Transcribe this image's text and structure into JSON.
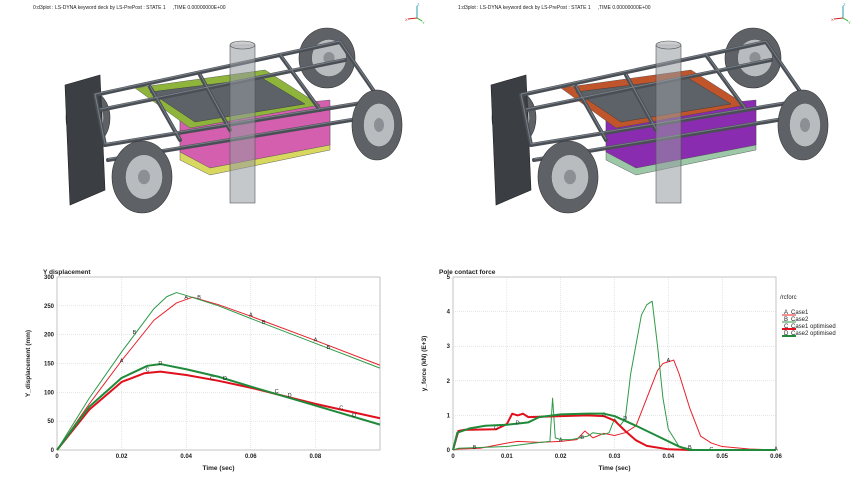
{
  "viewports": [
    {
      "title": "0:d3plot : LS-DYNA keyword deck by LS-PrePost : STATE 1     ,TIME 0.00000000E+00",
      "colors": {
        "top": "#8fb43c",
        "mid": "#d45fae",
        "base": "#d8d860",
        "frame": "#4a4f55"
      }
    },
    {
      "title": "1:d3plot : LS-DYNA keyword deck by LS-PrePost : STATE 1     ,TIME 0.00000000E+00",
      "colors": {
        "top": "#c0552c",
        "mid": "#8a2cb0",
        "base": "#9cc8a8",
        "frame": "#4a4f55"
      }
    }
  ],
  "triad": {
    "x": "X",
    "y": "Y",
    "z": "Z"
  },
  "chart_data": [
    {
      "type": "line",
      "title": "Y displacement",
      "xlabel": "Time (sec)",
      "ylabel": "Y_displacement (mm)",
      "xlim": [
        0,
        0.1
      ],
      "ylim": [
        0,
        300
      ],
      "grid": true,
      "xticks": [
        0,
        0.02,
        0.04,
        0.06,
        0.08
      ],
      "xtick_labels": [
        "0",
        "0.02",
        "0.04",
        "0.06",
        "0.08"
      ],
      "yticks": [
        0,
        50,
        100,
        150,
        200,
        250,
        300
      ],
      "ytick_labels": [
        "0",
        "50",
        "100",
        "150",
        "200",
        "250",
        "300"
      ],
      "series": [
        {
          "name": "Case1",
          "letter": "A",
          "color": "#e8202a",
          "width": 1,
          "points": [
            [
              0,
              0
            ],
            [
              0.01,
              80
            ],
            [
              0.02,
              155
            ],
            [
              0.03,
              225
            ],
            [
              0.037,
              255
            ],
            [
              0.042,
              265
            ],
            [
              0.05,
              252
            ],
            [
              0.06,
              232
            ],
            [
              0.08,
              190
            ],
            [
              0.1,
              147
            ]
          ],
          "markers": [
            [
              0.02,
              155
            ],
            [
              0.04,
              265
            ],
            [
              0.06,
              235
            ],
            [
              0.08,
              192
            ]
          ]
        },
        {
          "name": "Case2",
          "letter": "B",
          "color": "#2f9a48",
          "width": 1,
          "points": [
            [
              0,
              0
            ],
            [
              0.01,
              90
            ],
            [
              0.02,
              170
            ],
            [
              0.03,
              245
            ],
            [
              0.034,
              266
            ],
            [
              0.037,
              273
            ],
            [
              0.04,
              268
            ],
            [
              0.05,
              250
            ],
            [
              0.06,
              228
            ],
            [
              0.08,
              185
            ],
            [
              0.1,
              142
            ]
          ],
          "markers": [
            [
              0.024,
              205
            ],
            [
              0.044,
              265
            ],
            [
              0.064,
              222
            ],
            [
              0.084,
              179
            ]
          ]
        },
        {
          "name": "Case1 optimised",
          "letter": "C",
          "color": "#e0101c",
          "width": 2,
          "points": [
            [
              0,
              0
            ],
            [
              0.01,
              70
            ],
            [
              0.02,
              118
            ],
            [
              0.027,
              133
            ],
            [
              0.032,
              136
            ],
            [
              0.04,
              130
            ],
            [
              0.05,
              120
            ],
            [
              0.06,
              108
            ],
            [
              0.08,
              80
            ],
            [
              0.1,
              55
            ]
          ],
          "markers": [
            [
              0.028,
              140
            ],
            [
              0.048,
              125
            ],
            [
              0.068,
              102
            ],
            [
              0.088,
              74
            ]
          ]
        },
        {
          "name": "Case2 optimised",
          "letter": "D",
          "color": "#1f8a3a",
          "width": 2,
          "points": [
            [
              0,
              0
            ],
            [
              0.01,
              75
            ],
            [
              0.02,
              125
            ],
            [
              0.028,
              146
            ],
            [
              0.032,
              149
            ],
            [
              0.04,
              140
            ],
            [
              0.05,
              127
            ],
            [
              0.06,
              110
            ],
            [
              0.08,
              77
            ],
            [
              0.1,
              44
            ]
          ],
          "markers": [
            [
              0.032,
              151
            ],
            [
              0.052,
              125
            ],
            [
              0.072,
              95
            ],
            [
              0.092,
              61
            ]
          ]
        }
      ]
    },
    {
      "type": "line",
      "title": "Pole contact force",
      "xlabel": "Time (sec)",
      "ylabel": "y_force (kN) (E+3)",
      "xlim": [
        0,
        0.06
      ],
      "ylim": [
        0,
        5
      ],
      "grid": true,
      "xticks": [
        0,
        0.01,
        0.02,
        0.03,
        0.04,
        0.05,
        0.06
      ],
      "xtick_labels": [
        "0",
        "0.01",
        "0.02",
        "0.03",
        "0.04",
        "0.05",
        "0.06"
      ],
      "yticks": [
        0,
        1,
        2,
        3,
        4,
        5
      ],
      "ytick_labels": [
        "0",
        "1",
        "2",
        "3",
        "4",
        "5"
      ],
      "legend_title": "/rcforc",
      "legend_position": "right",
      "series": [
        {
          "name": "Case1",
          "letter": "A",
          "color": "#e8202a",
          "width": 1,
          "points": [
            [
              0,
              0
            ],
            [
              0.001,
              0.03
            ],
            [
              0.005,
              0.05
            ],
            [
              0.01,
              0.2
            ],
            [
              0.012,
              0.25
            ],
            [
              0.016,
              0.22
            ],
            [
              0.02,
              0.25
            ],
            [
              0.023,
              0.3
            ],
            [
              0.0245,
              0.55
            ],
            [
              0.026,
              0.35
            ],
            [
              0.028,
              0.48
            ],
            [
              0.03,
              0.42
            ],
            [
              0.032,
              0.5
            ],
            [
              0.034,
              0.7
            ],
            [
              0.036,
              1.5
            ],
            [
              0.038,
              2.3
            ],
            [
              0.039,
              2.5
            ],
            [
              0.041,
              2.6
            ],
            [
              0.042,
              2.2
            ],
            [
              0.044,
              1.2
            ],
            [
              0.045,
              0.8
            ],
            [
              0.046,
              0.4
            ],
            [
              0.048,
              0.2
            ],
            [
              0.05,
              0.1
            ],
            [
              0.055,
              0.03
            ],
            [
              0.06,
              0
            ]
          ],
          "markers": [
            [
              0.02,
              0.3
            ],
            [
              0.04,
              2.6
            ],
            [
              0.06,
              0.05
            ]
          ]
        },
        {
          "name": "Case2",
          "letter": "B",
          "color": "#2f9a48",
          "width": 1,
          "points": [
            [
              0,
              0
            ],
            [
              0.001,
              0.05
            ],
            [
              0.01,
              0.1
            ],
            [
              0.015,
              0.2
            ],
            [
              0.018,
              0.25
            ],
            [
              0.0185,
              1.5
            ],
            [
              0.019,
              0.35
            ],
            [
              0.02,
              0.3
            ],
            [
              0.022,
              0.3
            ],
            [
              0.025,
              0.4
            ],
            [
              0.026,
              0.5
            ],
            [
              0.028,
              0.45
            ],
            [
              0.029,
              0.5
            ],
            [
              0.03,
              0.9
            ],
            [
              0.031,
              0.7
            ],
            [
              0.032,
              0.9
            ],
            [
              0.033,
              2.2
            ],
            [
              0.035,
              3.9
            ],
            [
              0.036,
              4.2
            ],
            [
              0.037,
              4.3
            ],
            [
              0.038,
              3.0
            ],
            [
              0.039,
              1.5
            ],
            [
              0.04,
              0.6
            ],
            [
              0.042,
              0.1
            ],
            [
              0.045,
              0
            ],
            [
              0.06,
              0
            ]
          ],
          "markers": [
            [
              0.004,
              0.08
            ],
            [
              0.024,
              0.38
            ],
            [
              0.044,
              0.08
            ]
          ]
        },
        {
          "name": "Case1 optimised",
          "letter": "C",
          "color": "#e0101c",
          "width": 2,
          "points": [
            [
              0,
              0
            ],
            [
              0.001,
              0.55
            ],
            [
              0.002,
              0.58
            ],
            [
              0.008,
              0.6
            ],
            [
              0.01,
              0.75
            ],
            [
              0.011,
              1.05
            ],
            [
              0.012,
              1.0
            ],
            [
              0.013,
              1.05
            ],
            [
              0.014,
              0.95
            ],
            [
              0.02,
              0.98
            ],
            [
              0.025,
              1.0
            ],
            [
              0.028,
              0.98
            ],
            [
              0.03,
              0.85
            ],
            [
              0.032,
              0.55
            ],
            [
              0.034,
              0.28
            ],
            [
              0.036,
              0.12
            ],
            [
              0.04,
              0.02
            ],
            [
              0.044,
              0
            ],
            [
              0.06,
              0
            ]
          ],
          "markers": [
            [
              0.008,
              0.65
            ],
            [
              0.028,
              1.02
            ],
            [
              0.048,
              0.03
            ]
          ]
        },
        {
          "name": "Case2 optimised",
          "letter": "D",
          "color": "#1f8a3a",
          "width": 2,
          "points": [
            [
              0,
              0
            ],
            [
              0.0008,
              0.5
            ],
            [
              0.003,
              0.62
            ],
            [
              0.006,
              0.7
            ],
            [
              0.01,
              0.73
            ],
            [
              0.014,
              0.8
            ],
            [
              0.016,
              0.95
            ],
            [
              0.02,
              1.03
            ],
            [
              0.025,
              1.05
            ],
            [
              0.028,
              1.05
            ],
            [
              0.03,
              0.98
            ],
            [
              0.034,
              0.7
            ],
            [
              0.038,
              0.4
            ],
            [
              0.042,
              0.1
            ],
            [
              0.044,
              0
            ],
            [
              0.06,
              0
            ]
          ],
          "markers": [
            [
              0.012,
              0.8
            ],
            [
              0.032,
              0.93
            ]
          ]
        }
      ]
    }
  ]
}
